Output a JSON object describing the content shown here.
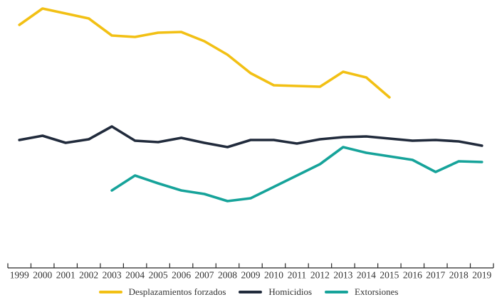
{
  "chart": {
    "background_color": "#ffffff",
    "axis_color": "#262626",
    "label_color": "#333333"
  },
  "chart_data": {
    "type": "line",
    "title": "",
    "xlabel": "",
    "ylabel": "",
    "grid": false,
    "legend_position": "bottom-center",
    "x": [
      1999,
      2000,
      2001,
      2002,
      2003,
      2004,
      2005,
      2006,
      2007,
      2008,
      2009,
      2010,
      2011,
      2012,
      2013,
      2014,
      2015,
      2016,
      2017,
      2018,
      2019
    ],
    "y_axis": {
      "visible": false,
      "ylim": [
        0,
        400
      ]
    },
    "x_axis": {
      "visible": true,
      "tick_style": "between-labels"
    },
    "series": [
      {
        "name": "Desplazamientos forzados",
        "color": "#F2C014",
        "x_start": 1999,
        "x_end": 2015,
        "values": [
          345,
          368,
          361,
          354,
          330,
          328,
          334,
          335,
          322,
          303,
          277,
          260,
          259,
          258,
          279,
          271,
          243
        ]
      },
      {
        "name": "Homicidios",
        "color": "#212B3C",
        "x_start": 1999,
        "x_end": 2019,
        "values": [
          183,
          189,
          179,
          184,
          202,
          182,
          180,
          186,
          179,
          173,
          183,
          183,
          178,
          184,
          187,
          188,
          185,
          182,
          183,
          181,
          175
        ]
      },
      {
        "name": "Extorsiones",
        "color": "#16A39A",
        "x_start": 2003,
        "x_end": 2019,
        "values": [
          112,
          133,
          122,
          112,
          107,
          97,
          101,
          117,
          133,
          149,
          173,
          165,
          160,
          155,
          138,
          153,
          152
        ]
      }
    ]
  }
}
